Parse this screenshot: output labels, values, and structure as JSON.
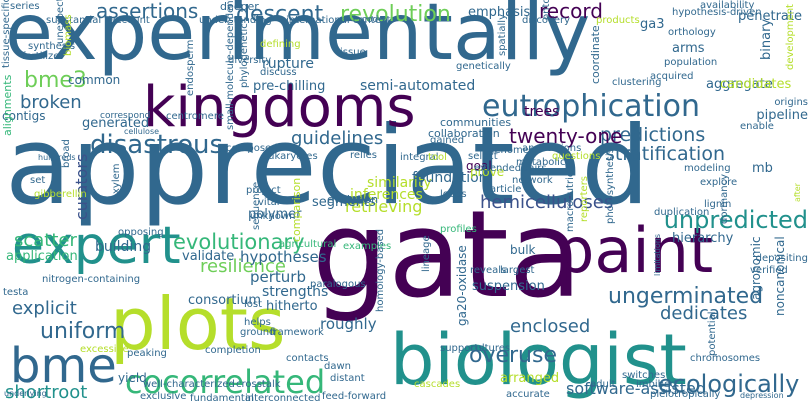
{
  "palette": {
    "dark_purple": "#440154",
    "indigo": "#3b528b",
    "blue": "#31688e",
    "teal": "#21918c",
    "green": "#35b779",
    "light_green": "#6ece58",
    "yellow_green": "#b5de2b"
  },
  "words": [
    {
      "text": "experimentally",
      "color": "#31688e"
    },
    {
      "text": "appreciated",
      "color": "#31688e"
    },
    {
      "text": "gata",
      "color": "#440154"
    },
    {
      "text": "kingdoms",
      "color": "#440154"
    },
    {
      "text": "biologist",
      "color": "#21918c"
    },
    {
      "text": "plots",
      "color": "#b5de2b"
    },
    {
      "text": "paint",
      "color": "#440154"
    },
    {
      "text": "expert",
      "color": "#21918c"
    },
    {
      "text": "bme",
      "color": "#31688e"
    },
    {
      "text": "eutrophication",
      "color": "#31688e"
    },
    {
      "text": "cocorrelated",
      "color": "#35b779"
    },
    {
      "text": "ecologically",
      "color": "#31688e"
    },
    {
      "text": "overuse",
      "color": "#31688e"
    },
    {
      "text": "disastrous",
      "color": "#31688e"
    },
    {
      "text": "unpredicted",
      "color": "#21918c"
    },
    {
      "text": "ungerminated",
      "color": "#31688e"
    },
    {
      "text": "evolutionary",
      "color": "#35b779"
    },
    {
      "text": "predictions",
      "color": "#31688e"
    },
    {
      "text": "stratification",
      "color": "#31688e"
    },
    {
      "text": "descent",
      "color": "#31688e"
    },
    {
      "text": "revolution",
      "color": "#6ece58"
    },
    {
      "text": "assertions",
      "color": "#31688e"
    },
    {
      "text": "twenty-one",
      "color": "#440154"
    },
    {
      "text": "bme3",
      "color": "#6ece58"
    },
    {
      "text": "broken",
      "color": "#31688e"
    },
    {
      "text": "uniform",
      "color": "#31688e"
    },
    {
      "text": "explicit",
      "color": "#31688e"
    },
    {
      "text": "guidelines",
      "color": "#31688e"
    },
    {
      "text": "record",
      "color": "#440154"
    },
    {
      "text": "shortroot",
      "color": "#21918c"
    },
    {
      "text": "enclosed",
      "color": "#31688e"
    },
    {
      "text": "dedicates",
      "color": "#31688e"
    },
    {
      "text": "hemicelluloses",
      "color": "#3b528b"
    },
    {
      "text": "resilience",
      "color": "#6ece58"
    },
    {
      "text": "software-assisted",
      "color": "#31688e"
    },
    {
      "text": "retrieving",
      "color": "#b5de2b"
    },
    {
      "text": "curators",
      "color": "#3b528b"
    },
    {
      "text": "scatter",
      "color": "#35b779"
    },
    {
      "text": "hypotheses",
      "color": "#31688e"
    },
    {
      "text": "perturb",
      "color": "#31688e"
    },
    {
      "text": "strengths",
      "color": "#31688e"
    },
    {
      "text": "semi-automated",
      "color": "#31688e"
    },
    {
      "text": "pre-chilling",
      "color": "#31688e"
    },
    {
      "text": "rupture",
      "color": "#31688e"
    },
    {
      "text": "trees",
      "color": "#440154"
    },
    {
      "text": "similarity",
      "color": "#b5de2b"
    },
    {
      "text": "inferences",
      "color": "#b5de2b"
    },
    {
      "text": "foundation",
      "color": "#31688e"
    },
    {
      "text": "segments",
      "color": "#31688e"
    },
    {
      "text": "collaboration",
      "color": "#31688e"
    },
    {
      "text": "communities",
      "color": "#31688e"
    },
    {
      "text": "generated",
      "color": "#31688e"
    },
    {
      "text": "building",
      "color": "#31688e"
    },
    {
      "text": "application",
      "color": "#35b779"
    },
    {
      "text": "validate",
      "color": "#31688e"
    },
    {
      "text": "consortium",
      "color": "#31688e"
    },
    {
      "text": "hitherto",
      "color": "#31688e"
    },
    {
      "text": "roughly",
      "color": "#31688e"
    },
    {
      "text": "arranged",
      "color": "#b5de2b"
    },
    {
      "text": "hierarchy",
      "color": "#31688e"
    },
    {
      "text": "aggregate",
      "color": "#31688e"
    },
    {
      "text": "penetrate",
      "color": "#31688e"
    },
    {
      "text": "pipeline",
      "color": "#31688e"
    },
    {
      "text": "candidates",
      "color": "#b5de2b"
    },
    {
      "text": "emphasis",
      "color": "#31688e"
    },
    {
      "text": "ga3",
      "color": "#31688e"
    },
    {
      "text": "arms",
      "color": "#31688e"
    },
    {
      "text": "binary",
      "color": "#31688e"
    },
    {
      "text": "common",
      "color": "#31688e"
    },
    {
      "text": "contigs",
      "color": "#31688e"
    },
    {
      "text": "polymer",
      "color": "#31688e"
    },
    {
      "text": "goal",
      "color": "#440154"
    },
    {
      "text": "prove",
      "color": "#b5de2b"
    },
    {
      "text": "bulk",
      "color": "#31688e"
    },
    {
      "text": "suspension",
      "color": "#31688e"
    },
    {
      "text": "ga20-oxidase",
      "color": "#31688e"
    },
    {
      "text": "mb",
      "color": "#31688e"
    },
    {
      "text": "noncanonical",
      "color": "#31688e"
    },
    {
      "text": "agronomic",
      "color": "#31688e"
    },
    {
      "text": "yield",
      "color": "#31688e"
    },
    {
      "text": "evolution",
      "color": "#31688e"
    },
    {
      "text": "coordinate",
      "color": "#31688e"
    },
    {
      "text": "deeper",
      "color": "#31688e"
    },
    {
      "text": "series",
      "color": "#31688e"
    },
    {
      "text": "alignments",
      "color": "#35b779"
    },
    {
      "text": "framework",
      "color": "#31688e"
    },
    {
      "text": "sequence",
      "color": "#31688e"
    },
    {
      "text": "comparison",
      "color": "#b5de2b"
    },
    {
      "text": "development",
      "color": "#b5de2b"
    },
    {
      "text": "helps",
      "color": "#31688e"
    },
    {
      "text": "ground",
      "color": "#31688e"
    },
    {
      "text": "lost",
      "color": "#31688e"
    },
    {
      "text": "dawn",
      "color": "#31688e"
    },
    {
      "text": "distant",
      "color": "#31688e"
    },
    {
      "text": "supports",
      "color": "#31688e"
    },
    {
      "text": "cultures",
      "color": "#31688e"
    },
    {
      "text": "adult",
      "color": "#31688e"
    },
    {
      "text": "switches",
      "color": "#31688e"
    },
    {
      "text": "imbibed",
      "color": "#31688e"
    },
    {
      "text": "pleiotropically",
      "color": "#31688e"
    },
    {
      "text": "accurate",
      "color": "#31688e"
    },
    {
      "text": "cascades",
      "color": "#b5de2b"
    },
    {
      "text": "feed-forward",
      "color": "#31688e"
    },
    {
      "text": "fundamental",
      "color": "#31688e"
    },
    {
      "text": "exclusive",
      "color": "#31688e"
    },
    {
      "text": "interconnected",
      "color": "#31688e"
    },
    {
      "text": "crosstalk",
      "color": "#31688e"
    },
    {
      "text": "well-characterized",
      "color": "#31688e"
    },
    {
      "text": "completion",
      "color": "#31688e"
    },
    {
      "text": "peaking",
      "color": "#31688e"
    },
    {
      "text": "excessive",
      "color": "#b5de2b"
    },
    {
      "text": "testa",
      "color": "#31688e"
    },
    {
      "text": "nitrogen-containing",
      "color": "#31688e"
    },
    {
      "text": "opposing",
      "color": "#31688e"
    },
    {
      "text": "project",
      "color": "#31688e"
    },
    {
      "text": "vital",
      "color": "#31688e"
    },
    {
      "text": "unknown",
      "color": "#31688e"
    },
    {
      "text": "agricultural",
      "color": "#35b779"
    },
    {
      "text": "examples",
      "color": "#35b779"
    },
    {
      "text": "paralogous",
      "color": "#31688e"
    },
    {
      "text": "lineage",
      "color": "#31688e"
    },
    {
      "text": "homology-based",
      "color": "#31688e"
    },
    {
      "text": "largest",
      "color": "#31688e"
    },
    {
      "text": "reveals",
      "color": "#31688e"
    },
    {
      "text": "profiles",
      "color": "#35b779"
    },
    {
      "text": "loops",
      "color": "#31688e"
    },
    {
      "text": "article",
      "color": "#31688e"
    },
    {
      "text": "extended",
      "color": "#31688e"
    },
    {
      "text": "network",
      "color": "#31688e"
    },
    {
      "text": "metabolic",
      "color": "#31688e"
    },
    {
      "text": "questions",
      "color": "#b5de2b"
    },
    {
      "text": "pairs",
      "color": "#31688e"
    },
    {
      "text": "genomes",
      "color": "#31688e"
    },
    {
      "text": "annotations",
      "color": "#31688e"
    },
    {
      "text": "select",
      "color": "#31688e"
    },
    {
      "text": "integral",
      "color": "#31688e"
    },
    {
      "text": "tool",
      "color": "#b5de2b"
    },
    {
      "text": "relies",
      "color": "#31688e"
    },
    {
      "text": "eukaryotes",
      "color": "#31688e"
    },
    {
      "text": "composed",
      "color": "#31688e"
    },
    {
      "text": "small-molecule-dependent",
      "color": "#31688e"
    },
    {
      "text": "hundreds",
      "color": "#31688e"
    },
    {
      "text": "broad",
      "color": "#31688e"
    },
    {
      "text": "cellulose",
      "color": "#31688e"
    },
    {
      "text": "correspond",
      "color": "#31688e"
    },
    {
      "text": "fertilizer",
      "color": "#31688e"
    },
    {
      "text": "substantial",
      "color": "#31688e"
    },
    {
      "text": "account",
      "color": "#31688e"
    },
    {
      "text": "understanding",
      "color": "#31688e"
    },
    {
      "text": "phylogenetic",
      "color": "#31688e"
    },
    {
      "text": "endosperm",
      "color": "#31688e"
    },
    {
      "text": "defining",
      "color": "#b5de2b"
    },
    {
      "text": "diversity",
      "color": "#31688e"
    },
    {
      "text": "discuss",
      "color": "#31688e"
    },
    {
      "text": "international context",
      "color": "#31688e"
    },
    {
      "text": "code",
      "color": "#31688e"
    },
    {
      "text": "discovery",
      "color": "#31688e"
    },
    {
      "text": "products",
      "color": "#b5de2b"
    },
    {
      "text": "hypothesis-driven",
      "color": "#31688e"
    },
    {
      "text": "availability",
      "color": "#31688e"
    },
    {
      "text": "ontology",
      "color": "#31688e"
    },
    {
      "text": "orthology",
      "color": "#31688e"
    },
    {
      "text": "population",
      "color": "#31688e"
    },
    {
      "text": "acquired",
      "color": "#31688e"
    },
    {
      "text": "clustering",
      "color": "#31688e"
    },
    {
      "text": "spatially",
      "color": "#31688e"
    },
    {
      "text": "genetically",
      "color": "#31688e"
    },
    {
      "text": "issue",
      "color": "#31688e"
    },
    {
      "text": "origins",
      "color": "#31688e"
    },
    {
      "text": "enable",
      "color": "#31688e"
    },
    {
      "text": "gained",
      "color": "#31688e"
    },
    {
      "text": "explore",
      "color": "#31688e"
    },
    {
      "text": "modeling",
      "color": "#31688e"
    },
    {
      "text": "lignin",
      "color": "#31688e"
    },
    {
      "text": "duplication",
      "color": "#31688e"
    },
    {
      "text": "dormancy",
      "color": "#31688e"
    },
    {
      "text": "verified",
      "color": "#31688e"
    },
    {
      "text": "depositing",
      "color": "#31688e"
    },
    {
      "text": "chromosomes",
      "color": "#31688e"
    },
    {
      "text": "potential",
      "color": "#31688e"
    },
    {
      "text": "reporters",
      "color": "#b5de2b"
    },
    {
      "text": "photosynthesis",
      "color": "#31688e"
    },
    {
      "text": "macronutrient",
      "color": "#31688e"
    },
    {
      "text": "contacts",
      "color": "#31688e"
    },
    {
      "text": "set",
      "color": "#31688e"
    },
    {
      "text": "gibberellin",
      "color": "#b5de2b"
    },
    {
      "text": "xylem",
      "color": "#31688e"
    },
    {
      "text": "centromere",
      "color": "#31688e"
    },
    {
      "text": "synthesis",
      "color": "#31688e"
    },
    {
      "text": "unexpected",
      "color": "#31688e"
    },
    {
      "text": "tissue-specific",
      "color": "#31688e"
    },
    {
      "text": "biomass",
      "color": "#b5de2b"
    },
    {
      "text": "depression",
      "color": "#31688e"
    },
    {
      "text": "limitations",
      "color": "#31688e"
    },
    {
      "text": "after",
      "color": "#b5de2b"
    },
    {
      "text": "underlying",
      "color": "#31688e"
    }
  ]
}
